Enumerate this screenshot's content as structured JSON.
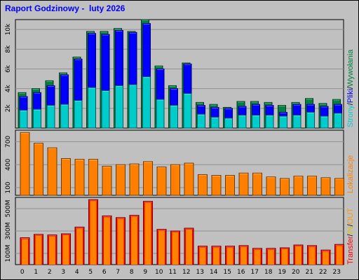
{
  "title": "Raport Godzinowy -  luty 2026",
  "colors": {
    "background": "#c0c0c0",
    "grid": "#909090",
    "title": "#0000ff",
    "strony": "#00cccc",
    "pliki": "#0000ff",
    "wywolania": "#008040",
    "lokalizacje": "#ff8000",
    "transfer": "#ff0000",
    "in": "#e0c000",
    "out": "#ff9900"
  },
  "chart_data": [
    {
      "type": "bar",
      "panel": "requests",
      "categories": [
        "0",
        "1",
        "2",
        "3",
        "4",
        "5",
        "6",
        "7",
        "8",
        "9",
        "10",
        "11",
        "12",
        "13",
        "14",
        "15",
        "16",
        "17",
        "18",
        "19",
        "20",
        "21",
        "22",
        "23"
      ],
      "yticks": [
        "2k",
        "4k",
        "6k",
        "8k",
        "10k"
      ],
      "ylim": [
        0,
        11000
      ],
      "legend": [
        "Strony",
        "Pliki",
        "Wywołania"
      ],
      "legend_separator": "/",
      "legend_position": "right",
      "series": [
        {
          "name": "Wywołania",
          "color": "#008040",
          "values": [
            3600,
            4000,
            4800,
            5600,
            7200,
            9800,
            9800,
            10100,
            9800,
            11000,
            6300,
            4300,
            6600,
            2600,
            2400,
            2100,
            2700,
            2700,
            2600,
            2300,
            2600,
            3000,
            2500,
            2900
          ]
        },
        {
          "name": "Pliki",
          "color": "#0000ff",
          "values": [
            3200,
            3600,
            4300,
            5400,
            7000,
            9600,
            9500,
            9900,
            9700,
            10600,
            6000,
            4000,
            6500,
            2300,
            2100,
            2000,
            2200,
            2400,
            2300,
            1600,
            2400,
            2400,
            2200,
            2400
          ]
        },
        {
          "name": "Strony",
          "color": "#00cccc",
          "values": [
            1800,
            1900,
            2300,
            2400,
            2800,
            4100,
            3800,
            4300,
            4400,
            5200,
            2900,
            2300,
            3500,
            1400,
            1100,
            1000,
            1300,
            1300,
            1300,
            1200,
            1300,
            1600,
            1200,
            1500
          ]
        }
      ]
    },
    {
      "type": "bar",
      "panel": "locations",
      "categories": [
        "0",
        "1",
        "2",
        "3",
        "4",
        "5",
        "6",
        "7",
        "8",
        "9",
        "10",
        "11",
        "12",
        "13",
        "14",
        "15",
        "16",
        "17",
        "18",
        "19",
        "20",
        "21",
        "22",
        "23"
      ],
      "yticks": [
        "100",
        "400",
        "700"
      ],
      "ylim": [
        0,
        850
      ],
      "legend": [
        "Lokalizacje"
      ],
      "legend_position": "right",
      "series": [
        {
          "name": "Lokalizacje",
          "color": "#ff8000",
          "values": [
            820,
            680,
            620,
            480,
            470,
            470,
            380,
            400,
            410,
            440,
            370,
            400,
            420,
            270,
            260,
            260,
            290,
            290,
            240,
            220,
            250,
            250,
            230,
            220
          ]
        }
      ]
    },
    {
      "type": "bar",
      "panel": "transfer",
      "categories": [
        "0",
        "1",
        "2",
        "3",
        "4",
        "5",
        "6",
        "7",
        "8",
        "9",
        "10",
        "11",
        "12",
        "13",
        "14",
        "15",
        "16",
        "17",
        "18",
        "19",
        "20",
        "21",
        "22",
        "23"
      ],
      "yticks": [
        "100M",
        "300M",
        "500M"
      ],
      "ylim": [
        0,
        600
      ],
      "legend": [
        "Transfer",
        "IN",
        "OUT"
      ],
      "legend_separator": "/",
      "legend_position": "right",
      "series": [
        {
          "name": "Transfer",
          "color": "#ff0000",
          "values": [
            240,
            270,
            265,
            275,
            335,
            580,
            435,
            420,
            440,
            565,
            315,
            300,
            325,
            165,
            165,
            165,
            170,
            145,
            145,
            150,
            175,
            170,
            130,
            180
          ]
        }
      ]
    }
  ]
}
